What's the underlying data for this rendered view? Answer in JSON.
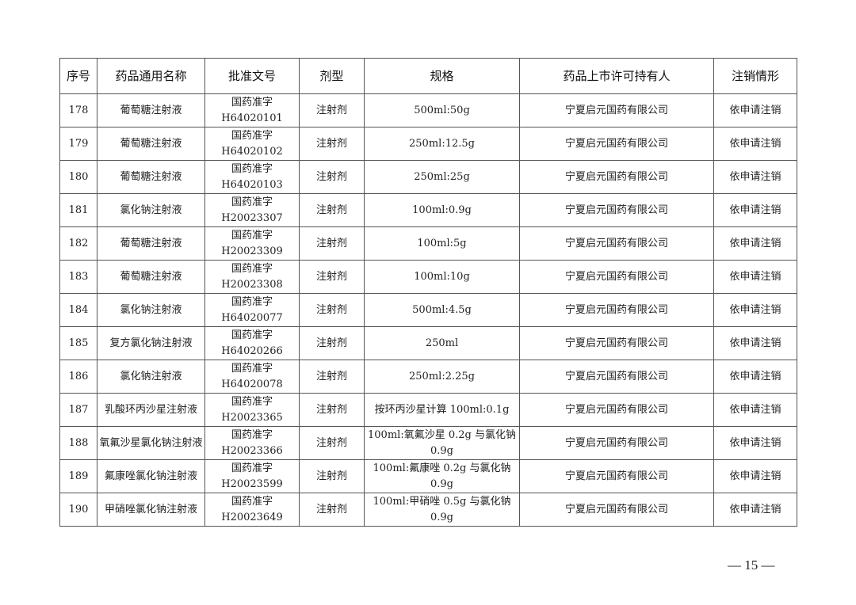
{
  "table": {
    "headers": [
      "序号",
      "药品通用名称",
      "批准文号",
      "剂型",
      "规格",
      "药品上市许可持有人",
      "注销情形"
    ],
    "rows": [
      {
        "no": "178",
        "name": "葡萄糖注射液",
        "approval_prefix": "国药准字",
        "approval_code": "H64020101",
        "form": "注射剂",
        "spec": "500ml:50g",
        "holder": "宁夏启元国药有限公司",
        "status": "依申请注销"
      },
      {
        "no": "179",
        "name": "葡萄糖注射液",
        "approval_prefix": "国药准字",
        "approval_code": "H64020102",
        "form": "注射剂",
        "spec": "250ml:12.5g",
        "holder": "宁夏启元国药有限公司",
        "status": "依申请注销"
      },
      {
        "no": "180",
        "name": "葡萄糖注射液",
        "approval_prefix": "国药准字",
        "approval_code": "H64020103",
        "form": "注射剂",
        "spec": "250ml:25g",
        "holder": "宁夏启元国药有限公司",
        "status": "依申请注销"
      },
      {
        "no": "181",
        "name": "氯化钠注射液",
        "approval_prefix": "国药准字",
        "approval_code": "H20023307",
        "form": "注射剂",
        "spec": "100ml:0.9g",
        "holder": "宁夏启元国药有限公司",
        "status": "依申请注销"
      },
      {
        "no": "182",
        "name": "葡萄糖注射液",
        "approval_prefix": "国药准字",
        "approval_code": "H20023309",
        "form": "注射剂",
        "spec": "100ml:5g",
        "holder": "宁夏启元国药有限公司",
        "status": "依申请注销"
      },
      {
        "no": "183",
        "name": "葡萄糖注射液",
        "approval_prefix": "国药准字",
        "approval_code": "H20023308",
        "form": "注射剂",
        "spec": "100ml:10g",
        "holder": "宁夏启元国药有限公司",
        "status": "依申请注销"
      },
      {
        "no": "184",
        "name": "氯化钠注射液",
        "approval_prefix": "国药准字",
        "approval_code": "H64020077",
        "form": "注射剂",
        "spec": "500ml:4.5g",
        "holder": "宁夏启元国药有限公司",
        "status": "依申请注销"
      },
      {
        "no": "185",
        "name": "复方氯化钠注射液",
        "approval_prefix": "国药准字",
        "approval_code": "H64020266",
        "form": "注射剂",
        "spec": "250ml",
        "holder": "宁夏启元国药有限公司",
        "status": "依申请注销"
      },
      {
        "no": "186",
        "name": "氯化钠注射液",
        "approval_prefix": "国药准字",
        "approval_code": "H64020078",
        "form": "注射剂",
        "spec": "250ml:2.25g",
        "holder": "宁夏启元国药有限公司",
        "status": "依申请注销"
      },
      {
        "no": "187",
        "name": "乳酸环丙沙星注射液",
        "approval_prefix": "国药准字",
        "approval_code": "H20023365",
        "form": "注射剂",
        "spec": "按环丙沙星计算 100ml:0.1g",
        "holder": "宁夏启元国药有限公司",
        "status": "依申请注销"
      },
      {
        "no": "188",
        "name": "氧氟沙星氯化钠注射液",
        "approval_prefix": "国药准字",
        "approval_code": "H20023366",
        "form": "注射剂",
        "spec": "100ml:氧氟沙星 0.2g 与氯化钠 0.9g",
        "holder": "宁夏启元国药有限公司",
        "status": "依申请注销"
      },
      {
        "no": "189",
        "name": "氟康唑氯化钠注射液",
        "approval_prefix": "国药准字",
        "approval_code": "H20023599",
        "form": "注射剂",
        "spec": "100ml:氟康唑 0.2g 与氯化钠 0.9g",
        "holder": "宁夏启元国药有限公司",
        "status": "依申请注销"
      },
      {
        "no": "190",
        "name": "甲硝唑氯化钠注射液",
        "approval_prefix": "国药准字",
        "approval_code": "H20023649",
        "form": "注射剂",
        "spec": "100ml:甲硝唑 0.5g 与氯化钠 0.9g",
        "holder": "宁夏启元国药有限公司",
        "status": "依申请注销"
      }
    ]
  },
  "footer": {
    "page_number": "— 15 —"
  }
}
